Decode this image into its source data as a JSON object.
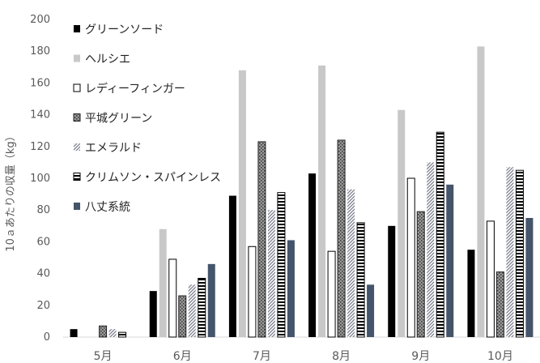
{
  "chart_data": {
    "type": "bar",
    "title": "",
    "xlabel": "",
    "ylabel": "10ａあたりの収量（kg）",
    "ylim": [
      0,
      200
    ],
    "yticks": [
      0,
      20,
      40,
      60,
      80,
      100,
      120,
      140,
      160,
      180,
      200
    ],
    "categories": [
      "5月",
      "6月",
      "7月",
      "8月",
      "9月",
      "10月"
    ],
    "grid": false,
    "legend_position": "top-left",
    "series": [
      {
        "name": "グリーンソード",
        "values": [
          5,
          29,
          89,
          103,
          70,
          55
        ],
        "fill": "black",
        "color": "#000000"
      },
      {
        "name": "ヘルシエ",
        "values": [
          0,
          68,
          168,
          171,
          143,
          183
        ],
        "fill": "light-gray",
        "color": "#c8c8c8"
      },
      {
        "name": "レディーフィンガー",
        "values": [
          0,
          49,
          57,
          54,
          100,
          73
        ],
        "fill": "white-outline",
        "color": "#ffffff"
      },
      {
        "name": "平城グリーン",
        "values": [
          7,
          26,
          123,
          124,
          79,
          41
        ],
        "fill": "dotted-gray",
        "color": "#6e6e6e"
      },
      {
        "name": "エメラルド",
        "values": [
          5,
          33,
          80,
          93,
          110,
          107
        ],
        "fill": "diagonal-hatch",
        "color": "#a8a8b0"
      },
      {
        "name": "クリムソン・スパインレス",
        "values": [
          3,
          37,
          91,
          72,
          129,
          105
        ],
        "fill": "horizontal-stripes",
        "color": "#000000"
      },
      {
        "name": "八丈系統",
        "values": [
          0,
          46,
          61,
          33,
          96,
          75
        ],
        "fill": "slate-blue",
        "color": "#44546a"
      }
    ]
  }
}
